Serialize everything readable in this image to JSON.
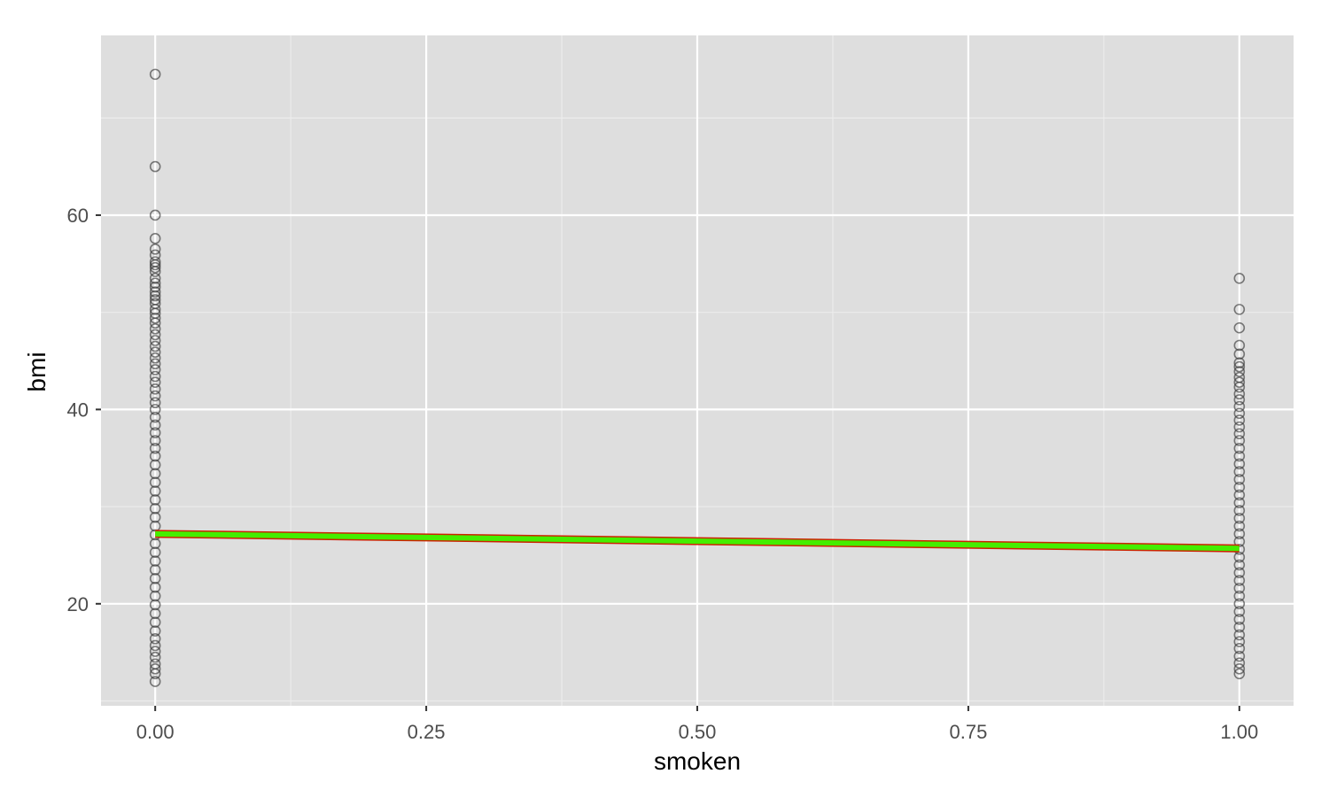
{
  "chart_data": {
    "type": "scatter",
    "title": "",
    "xlabel": "smoken",
    "ylabel": "bmi",
    "xlim": [
      -0.05,
      1.05
    ],
    "ylim": [
      9.5,
      78.5
    ],
    "x_ticks": [
      0.0,
      0.25,
      0.5,
      0.75,
      1.0
    ],
    "x_tick_labels": [
      "0.00",
      "0.25",
      "0.50",
      "0.75",
      "1.00"
    ],
    "y_ticks": [
      20,
      40,
      60
    ],
    "y_tick_labels": [
      "20",
      "40",
      "60"
    ],
    "grid": true,
    "legend": "none",
    "colors": {
      "panel_background": "#dedede",
      "grid_major": "#ffffff",
      "grid_minor": "#ececec",
      "point_stroke": "#3a3a3a",
      "fit_line": "#44ee00",
      "fit_line_edge": "#cc2200"
    },
    "points": {
      "x0": [
        74.5,
        65,
        60,
        57.6,
        56.5,
        55.9,
        55.2,
        54.9,
        54.6,
        54.2,
        53.5,
        53.0,
        52.6,
        52.1,
        51.7,
        51.3,
        50.9,
        50.3,
        49.9,
        49.4,
        48.9,
        48.3,
        47.7,
        47.1,
        46.5,
        45.9,
        45.3,
        44.7,
        44.1,
        43.4,
        42.8,
        42.1,
        41.4,
        40.7,
        40.0,
        39.2,
        38.4,
        37.6,
        36.8,
        36.0,
        35.2,
        34.3,
        33.4,
        32.5,
        31.6,
        30.7,
        29.8,
        28.9,
        28.0,
        27.1,
        26.2,
        25.3,
        24.4,
        23.5,
        22.6,
        21.7,
        20.8,
        19.9,
        19.0,
        18.1,
        17.2,
        16.4,
        15.7,
        15.1,
        14.5,
        13.8,
        13.3,
        12.8,
        12.0
      ],
      "x1": [
        53.5,
        50.3,
        48.4,
        46.6,
        45.7,
        44.8,
        44.4,
        43.9,
        43.3,
        42.8,
        42.3,
        41.6,
        41.0,
        40.3,
        39.6,
        38.9,
        38.2,
        37.5,
        36.8,
        36.0,
        35.2,
        34.4,
        33.6,
        32.8,
        32.0,
        31.2,
        30.4,
        29.6,
        28.8,
        28.0,
        27.2,
        26.4,
        25.6,
        24.8,
        24.0,
        23.2,
        22.4,
        21.6,
        20.8,
        20.0,
        19.2,
        18.4,
        17.6,
        16.8,
        16.1,
        15.4,
        14.6,
        13.9,
        13.3,
        12.8
      ]
    },
    "fit_line": {
      "x": [
        0.0,
        1.0
      ],
      "y": [
        27.2,
        25.7
      ]
    }
  }
}
